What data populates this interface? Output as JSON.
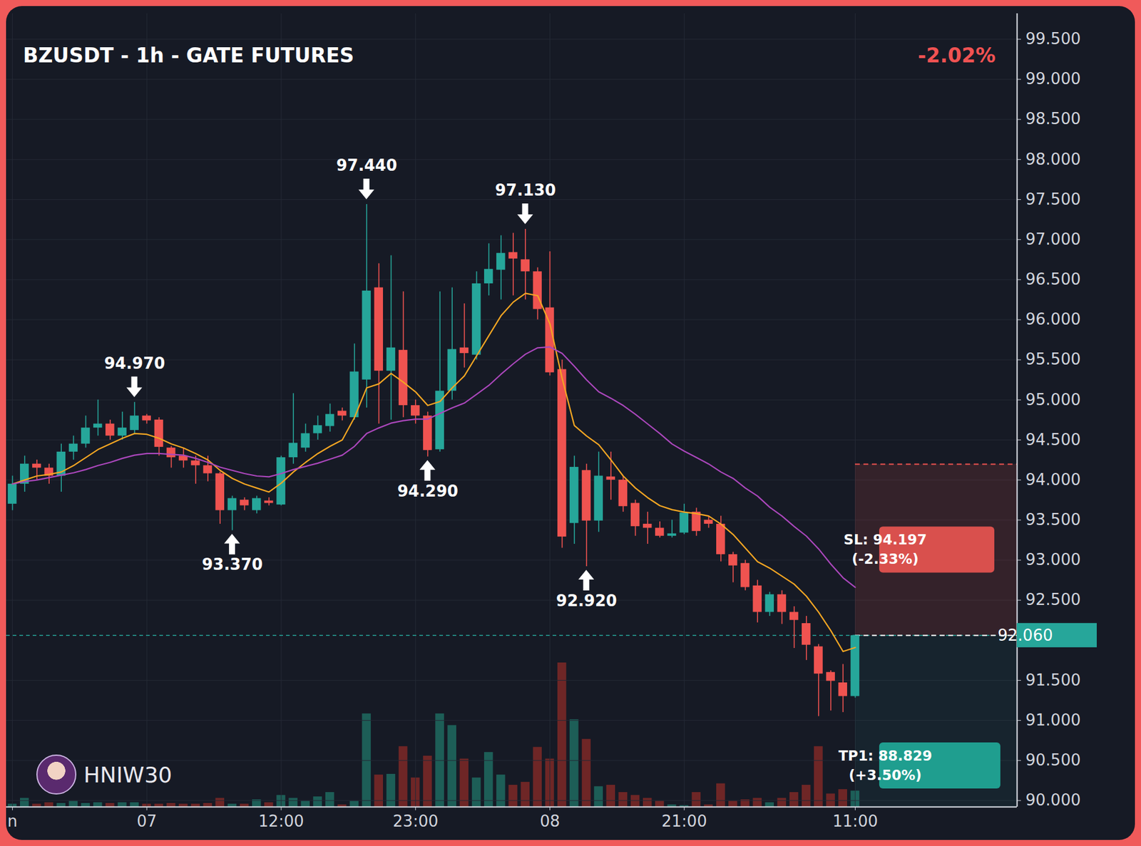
{
  "chart_data": {
    "type": "candlestick",
    "title": "BZUSDT - 1h - GATE FUTURES",
    "change_label": "-2.02%",
    "watermark": "HNIW30",
    "categories": [
      "n",
      null,
      null,
      null,
      null,
      null,
      null,
      null,
      null,
      null,
      null,
      "07",
      null,
      null,
      null,
      null,
      null,
      null,
      null,
      null,
      null,
      null,
      "12:00",
      null,
      null,
      null,
      null,
      null,
      null,
      null,
      null,
      null,
      null,
      "23:00",
      null,
      null,
      null,
      null,
      null,
      null,
      null,
      null,
      null,
      null,
      "08",
      null,
      null,
      null,
      null,
      null,
      null,
      null,
      null,
      null,
      null,
      "21:00",
      null,
      null,
      null,
      null,
      null,
      null,
      null,
      null,
      null,
      null,
      null,
      null,
      null,
      "11:00"
    ],
    "open": [
      93.7,
      93.95,
      94.2,
      94.15,
      94.05,
      94.35,
      94.45,
      94.65,
      94.7,
      94.55,
      94.62,
      94.8,
      94.75,
      94.4,
      94.3,
      94.24,
      94.18,
      94.08,
      93.62,
      93.75,
      93.62,
      93.74,
      93.69,
      94.28,
      94.4,
      94.58,
      94.67,
      94.86,
      94.78,
      95.25,
      96.4,
      95.36,
      95.62,
      94.93,
      94.8,
      94.38,
      95.11,
      95.65,
      95.56,
      96.45,
      96.62,
      96.84,
      96.75,
      96.6,
      96.15,
      95.38,
      93.46,
      94.12,
      93.49,
      94.04,
      94.0,
      93.71,
      93.45,
      93.4,
      93.3,
      93.34,
      93.6,
      93.5,
      93.45,
      93.07,
      92.96,
      92.68,
      92.35,
      92.57,
      92.35,
      92.21,
      91.92,
      91.6,
      91.47,
      91.3
    ],
    "high": [
      94.05,
      94.3,
      94.25,
      94.2,
      94.45,
      94.55,
      94.8,
      95.0,
      94.75,
      94.85,
      94.97,
      94.82,
      94.78,
      94.42,
      94.4,
      94.3,
      94.3,
      94.1,
      93.8,
      93.78,
      93.8,
      93.78,
      94.3,
      95.08,
      94.7,
      94.8,
      94.95,
      94.9,
      95.7,
      97.44,
      96.7,
      96.8,
      96.35,
      95.0,
      94.85,
      96.35,
      96.4,
      96.2,
      96.6,
      96.95,
      97.05,
      97.08,
      97.13,
      96.65,
      96.85,
      95.5,
      94.3,
      94.2,
      94.35,
      94.35,
      94.05,
      93.75,
      93.6,
      93.48,
      93.5,
      93.7,
      93.65,
      93.55,
      93.55,
      93.1,
      93.0,
      92.75,
      92.6,
      92.62,
      92.42,
      92.3,
      91.95,
      91.62,
      91.7,
      92.06
    ],
    "low": [
      93.62,
      93.85,
      94.0,
      93.95,
      93.85,
      94.25,
      94.4,
      94.55,
      94.5,
      94.5,
      94.58,
      94.7,
      94.3,
      94.15,
      94.15,
      93.95,
      93.98,
      93.45,
      93.37,
      93.62,
      93.58,
      93.68,
      93.68,
      94.2,
      94.35,
      94.5,
      94.6,
      94.74,
      94.75,
      94.9,
      94.7,
      94.75,
      94.78,
      94.7,
      94.29,
      94.35,
      95.0,
      95.4,
      95.5,
      96.3,
      96.25,
      96.3,
      96.25,
      96.0,
      95.3,
      93.15,
      93.2,
      92.92,
      93.35,
      93.75,
      93.6,
      93.3,
      93.2,
      93.28,
      93.28,
      93.32,
      93.3,
      93.4,
      92.98,
      92.72,
      92.62,
      92.22,
      92.3,
      92.2,
      91.9,
      91.75,
      91.05,
      91.12,
      91.1,
      91.28
    ],
    "close": [
      93.95,
      94.2,
      94.15,
      94.05,
      94.35,
      94.45,
      94.65,
      94.7,
      94.55,
      94.65,
      94.8,
      94.74,
      94.41,
      94.28,
      94.24,
      94.18,
      94.08,
      93.62,
      93.77,
      93.68,
      93.77,
      93.71,
      94.28,
      94.46,
      94.58,
      94.68,
      94.82,
      94.8,
      95.35,
      96.36,
      95.36,
      95.65,
      94.93,
      94.8,
      94.37,
      95.11,
      95.63,
      95.58,
      96.45,
      96.63,
      96.83,
      96.76,
      96.6,
      96.13,
      95.34,
      93.29,
      94.16,
      93.49,
      94.05,
      94.0,
      93.67,
      93.42,
      93.4,
      93.3,
      93.33,
      93.59,
      93.36,
      93.45,
      93.07,
      92.93,
      92.66,
      92.35,
      92.57,
      92.35,
      92.25,
      91.94,
      91.58,
      91.49,
      91.3,
      92.06
    ],
    "volume": [
      4,
      12,
      4,
      6,
      5,
      8,
      5,
      6,
      5,
      6,
      6,
      4,
      4,
      5,
      4,
      4,
      5,
      12,
      4,
      4,
      10,
      6,
      16,
      12,
      8,
      14,
      20,
      3,
      8,
      128,
      44,
      45,
      83,
      40,
      70,
      128,
      112,
      66,
      40,
      75,
      44,
      30,
      34,
      82,
      66,
      198,
      120,
      93,
      28,
      30,
      20,
      16,
      12,
      8,
      3,
      2,
      20,
      3,
      32,
      8,
      10,
      12,
      6,
      12,
      20,
      30,
      83,
      18,
      24,
      22
    ],
    "series": [
      {
        "type": "line",
        "color": "#f5a623",
        "values": [
          93.95,
          94.0,
          94.05,
          94.07,
          94.1,
          94.18,
          94.28,
          94.38,
          94.45,
          94.52,
          94.58,
          94.57,
          94.52,
          94.45,
          94.4,
          94.33,
          94.25,
          94.12,
          94.02,
          93.95,
          93.9,
          93.85,
          93.96,
          94.1,
          94.22,
          94.33,
          94.42,
          94.5,
          94.78,
          95.15,
          95.2,
          95.33,
          95.22,
          95.1,
          94.93,
          94.98,
          95.15,
          95.3,
          95.55,
          95.8,
          96.05,
          96.22,
          96.33,
          96.3,
          95.95,
          95.27,
          94.68,
          94.55,
          94.44,
          94.25,
          94.05,
          93.9,
          93.78,
          93.68,
          93.63,
          93.6,
          93.58,
          93.55,
          93.45,
          93.32,
          93.15,
          92.98,
          92.9,
          92.8,
          92.7,
          92.55,
          92.35,
          92.12,
          91.86,
          91.91
        ]
      },
      {
        "type": "line",
        "color": "#ab47bc",
        "values": [
          93.95,
          93.98,
          94.0,
          94.03,
          94.06,
          94.09,
          94.13,
          94.18,
          94.22,
          94.27,
          94.31,
          94.33,
          94.33,
          94.32,
          94.31,
          94.27,
          94.22,
          94.16,
          94.12,
          94.08,
          94.05,
          94.04,
          94.08,
          94.13,
          94.17,
          94.21,
          94.26,
          94.31,
          94.42,
          94.58,
          94.65,
          94.71,
          94.74,
          94.76,
          94.76,
          94.83,
          94.9,
          94.96,
          95.07,
          95.18,
          95.32,
          95.45,
          95.57,
          95.65,
          95.66,
          95.58,
          95.42,
          95.25,
          95.1,
          95.02,
          94.93,
          94.82,
          94.7,
          94.58,
          94.45,
          94.36,
          94.28,
          94.2,
          94.1,
          94.02,
          93.9,
          93.8,
          93.66,
          93.55,
          93.42,
          93.3,
          93.14,
          92.95,
          92.78,
          92.66
        ]
      }
    ],
    "ylim": [
      89.92,
      99.82
    ],
    "yticks": [
      {
        "value": 90,
        "label": "90.000"
      },
      {
        "value": 90.5,
        "label": "90.500"
      },
      {
        "value": 91,
        "label": "91.000"
      },
      {
        "value": 91.5,
        "label": "91.500"
      },
      {
        "value": 92.5,
        "label": "92.500"
      },
      {
        "value": 93,
        "label": "93.000"
      },
      {
        "value": 93.5,
        "label": "93.500"
      },
      {
        "value": 94,
        "label": "94.000"
      },
      {
        "value": 94.5,
        "label": "94.500"
      },
      {
        "value": 95,
        "label": "95.000"
      },
      {
        "value": 95.5,
        "label": "95.500"
      },
      {
        "value": 96,
        "label": "96.000"
      },
      {
        "value": 96.5,
        "label": "96.500"
      },
      {
        "value": 97,
        "label": "97.000"
      },
      {
        "value": 97.5,
        "label": "97.500"
      },
      {
        "value": 98,
        "label": "98.000"
      },
      {
        "value": 98.5,
        "label": "98.500"
      },
      {
        "value": 99,
        "label": "99.000"
      },
      {
        "value": 99.5,
        "label": "99.500"
      }
    ],
    "grid": true,
    "annotations": [
      {
        "index": 10,
        "value": 94.97,
        "label": "94.970"
      },
      {
        "index": 18,
        "value": 93.37,
        "label": "93.370"
      },
      {
        "index": 29,
        "value": 97.44,
        "label": "97.440"
      },
      {
        "index": 34,
        "value": 94.29,
        "label": "94.290"
      },
      {
        "index": 42,
        "value": 97.13,
        "label": "97.130"
      },
      {
        "index": 47,
        "value": 92.92,
        "label": "92.920"
      }
    ],
    "position": {
      "index": 69,
      "entry": 92.06,
      "entry_label": "92.060",
      "stop_loss": 94.197,
      "stop_loss_label": "SL: 94.197",
      "stop_loss_change": "(-2.33%)",
      "take_profit": 88.829,
      "take_profit_label": "TP1: 88.829",
      "take_profit_change": "(+3.50%)"
    }
  }
}
